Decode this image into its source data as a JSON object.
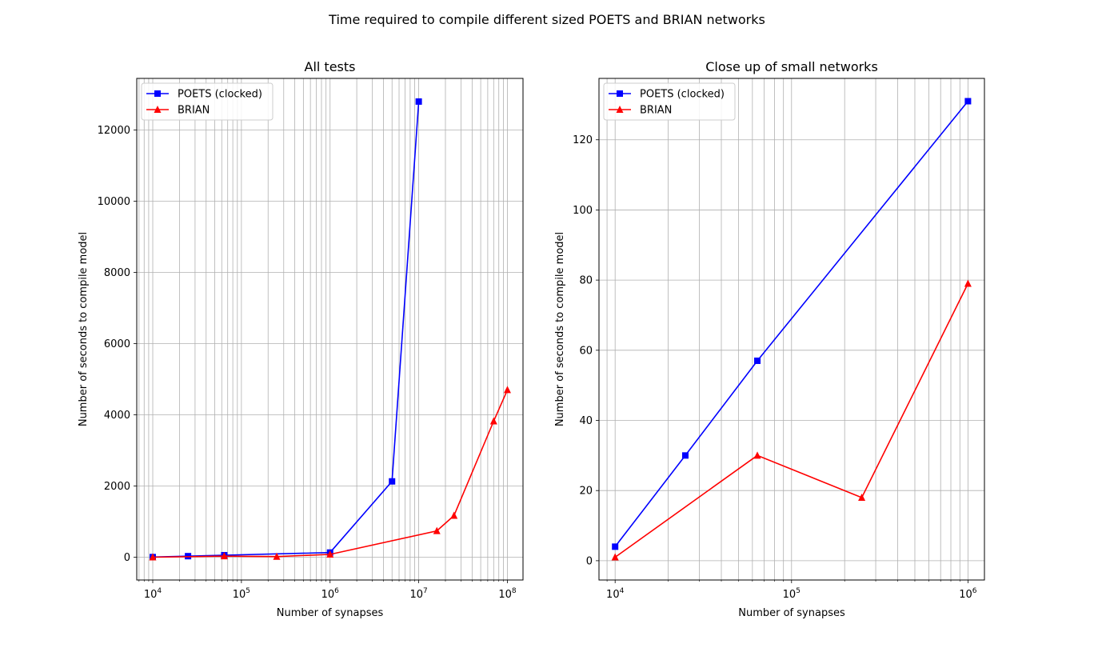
{
  "figure_title": "Time required to compile different sized POETS and BRIAN networks",
  "colors": {
    "poets": "#0000ff",
    "brian": "#ff0000",
    "grid": "#b0b0b0"
  },
  "chart_data": [
    {
      "type": "line",
      "title": "All tests",
      "xlabel": "Number of synapses",
      "ylabel": "Number of seconds to compile model",
      "xscale": "log",
      "xlim": [
        6600,
        150000000
      ],
      "ylim": [
        -640,
        13450
      ],
      "xticks": [
        {
          "value": 10000,
          "base": "10",
          "exp": "4"
        },
        {
          "value": 100000,
          "base": "10",
          "exp": "5"
        },
        {
          "value": 1000000,
          "base": "10",
          "exp": "6"
        },
        {
          "value": 10000000,
          "base": "10",
          "exp": "7"
        },
        {
          "value": 100000000,
          "base": "10",
          "exp": "8"
        }
      ],
      "yticks": [
        {
          "value": 0,
          "label": "0"
        },
        {
          "value": 2000,
          "label": "2000"
        },
        {
          "value": 4000,
          "label": "4000"
        },
        {
          "value": 6000,
          "label": "6000"
        },
        {
          "value": 8000,
          "label": "8000"
        },
        {
          "value": 10000,
          "label": "10000"
        },
        {
          "value": 12000,
          "label": "12000"
        }
      ],
      "grid": true,
      "minor_grid_x": true,
      "legend_position": "upper left",
      "series": [
        {
          "name": "POETS (clocked)",
          "color": "#0000ff",
          "marker": "square",
          "x": [
            10000,
            25000,
            64000,
            1000000,
            5000000,
            10000000
          ],
          "y": [
            4,
            30,
            57,
            131,
            2130,
            12800
          ]
        },
        {
          "name": "BRIAN",
          "color": "#ff0000",
          "marker": "triangle",
          "x": [
            10000,
            64000,
            250000,
            1000000,
            16000000,
            25000000,
            70000000,
            100000000
          ],
          "y": [
            1,
            30,
            18,
            79,
            740,
            1170,
            3820,
            4700
          ]
        }
      ]
    },
    {
      "type": "line",
      "title": "Close up of small networks",
      "xlabel": "Number of synapses",
      "ylabel": "Number of seconds to compile model",
      "xscale": "log",
      "xlim": [
        8100,
        1240000
      ],
      "ylim": [
        -5.5,
        137.5
      ],
      "xticks": [
        {
          "value": 10000,
          "base": "10",
          "exp": "4"
        },
        {
          "value": 100000,
          "base": "10",
          "exp": "5"
        },
        {
          "value": 1000000,
          "base": "10",
          "exp": "6"
        }
      ],
      "yticks": [
        {
          "value": 0,
          "label": "0"
        },
        {
          "value": 20,
          "label": "20"
        },
        {
          "value": 40,
          "label": "40"
        },
        {
          "value": 60,
          "label": "60"
        },
        {
          "value": 80,
          "label": "80"
        },
        {
          "value": 100,
          "label": "100"
        },
        {
          "value": 120,
          "label": "120"
        }
      ],
      "grid": true,
      "minor_grid_x": true,
      "legend_position": "upper left",
      "series": [
        {
          "name": "POETS (clocked)",
          "color": "#0000ff",
          "marker": "square",
          "x": [
            10000,
            25000,
            64000,
            1000000
          ],
          "y": [
            4,
            30,
            57,
            131
          ]
        },
        {
          "name": "BRIAN",
          "color": "#ff0000",
          "marker": "triangle",
          "x": [
            10000,
            64000,
            250000,
            1000000
          ],
          "y": [
            1,
            30,
            18,
            79
          ]
        }
      ]
    }
  ]
}
